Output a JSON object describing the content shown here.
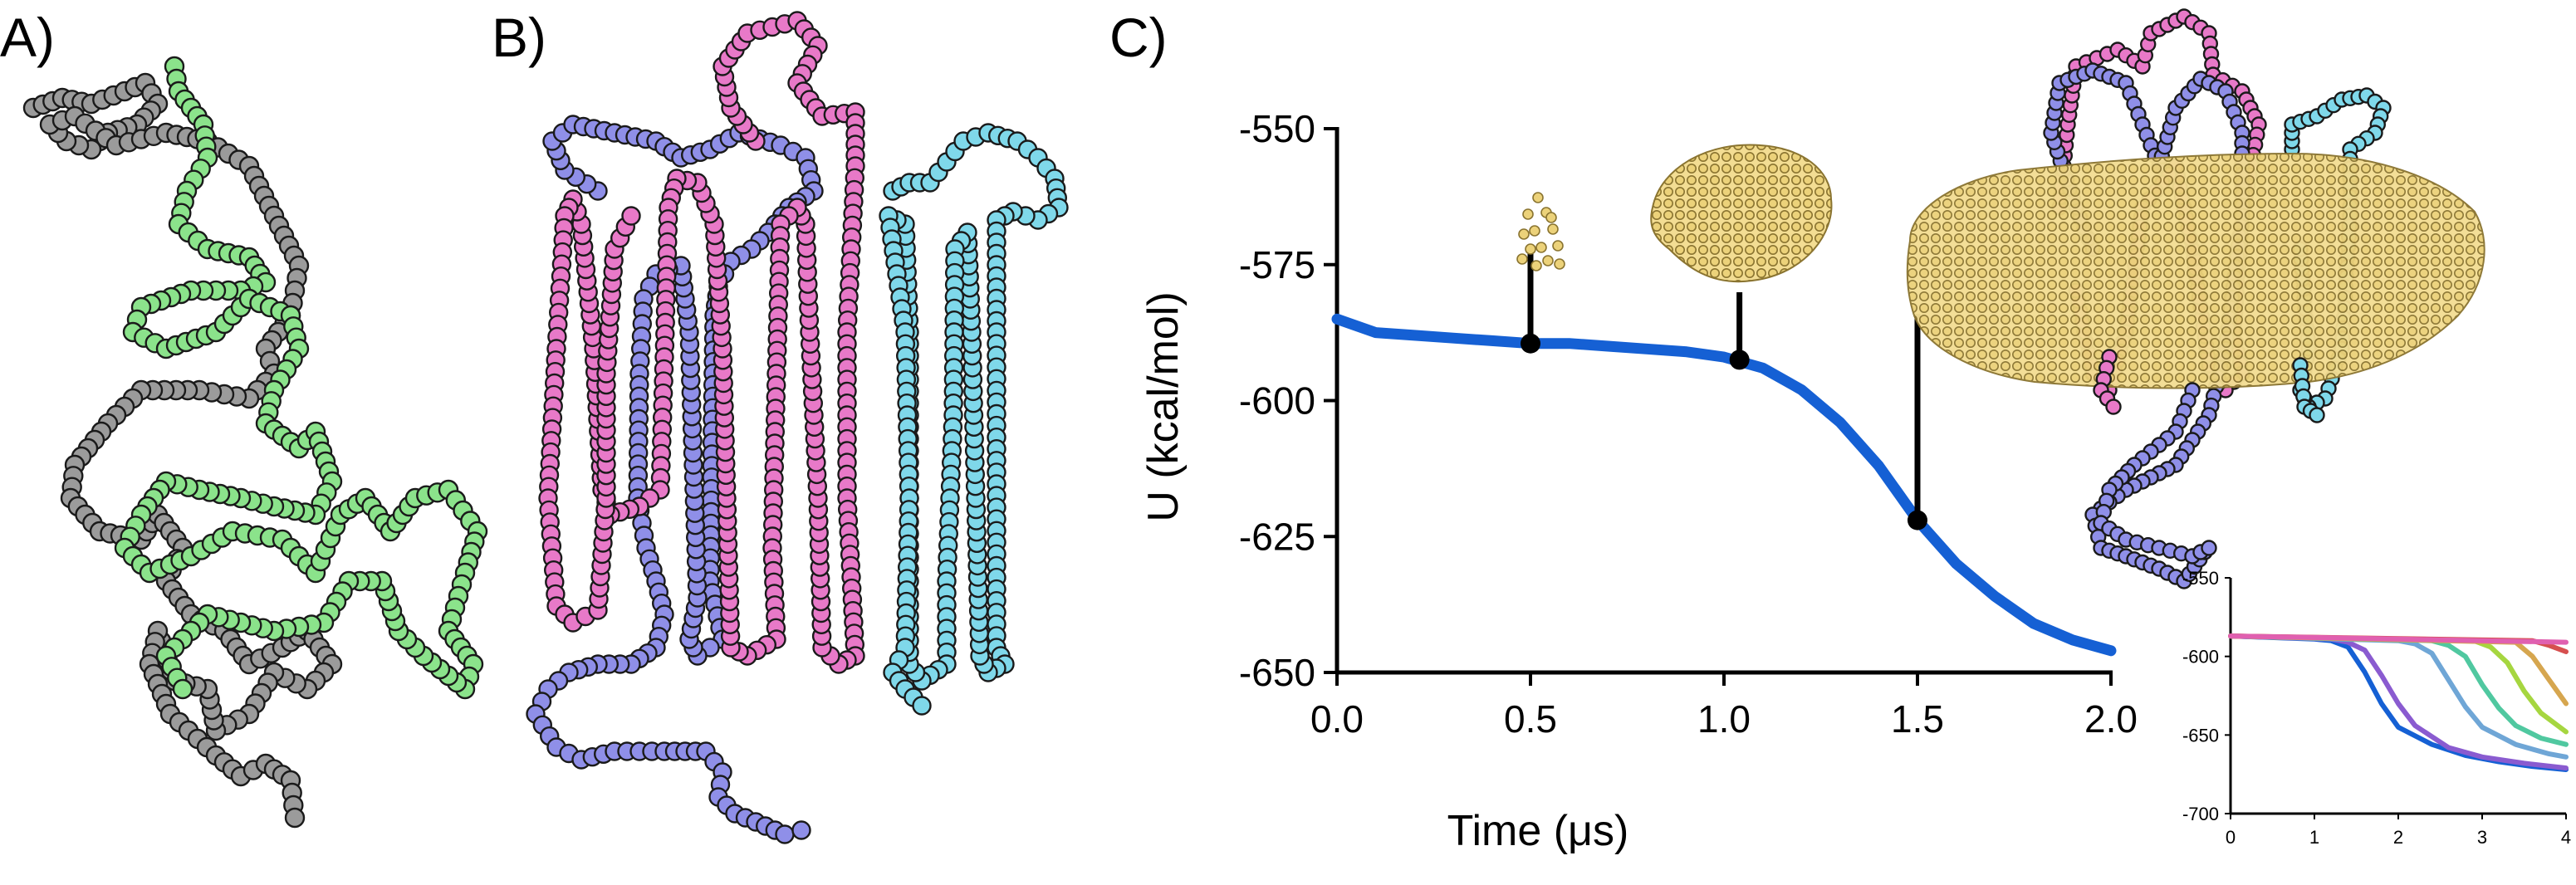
{
  "panels": {
    "a": "A)",
    "b": "B)",
    "c": "C)"
  },
  "colors": {
    "grey_chain": "#9b9b9b",
    "green_chain": "#8be38b",
    "violet_chain": "#8f8fe8",
    "pink_chain": "#e879c8",
    "cyan_chain": "#7fd8ea",
    "lipid": "#ecd27a",
    "main_line": "#1560d4"
  },
  "chart_data": [
    {
      "type": "line",
      "xlabel": "Time (μs)",
      "ylabel": "U (kcal/mol)",
      "xlim": [
        0.0,
        2.0
      ],
      "ylim": [
        -650,
        -550
      ],
      "xticks": [
        "0.0",
        "0.5",
        "1.0",
        "1.5",
        "2.0"
      ],
      "yticks": [
        "-550",
        "-575",
        "-600",
        "-625",
        "-650"
      ],
      "series": [
        {
          "color": "#1560d4",
          "x": [
            0.0,
            0.1,
            0.2,
            0.3,
            0.4,
            0.5,
            0.6,
            0.7,
            0.8,
            0.9,
            1.0,
            1.1,
            1.2,
            1.3,
            1.4,
            1.5,
            1.6,
            1.7,
            1.8,
            1.9,
            2.0
          ],
          "y": [
            -585,
            -587.5,
            -588,
            -588.5,
            -589,
            -589.5,
            -589.5,
            -590,
            -590.5,
            -591,
            -592,
            -594,
            -598,
            -604,
            -612,
            -622,
            -630,
            -636,
            -641,
            -644,
            -646
          ]
        }
      ],
      "markers": [
        {
          "x": 0.5,
          "y": -589.5
        },
        {
          "x": 1.04,
          "y": -592.5
        },
        {
          "x": 1.5,
          "y": -622
        }
      ]
    },
    {
      "type": "line",
      "xlim": [
        0,
        4
      ],
      "ylim": [
        -700,
        -550
      ],
      "xticks": [
        "0",
        "1",
        "2",
        "3",
        "4"
      ],
      "yticks": [
        "-550",
        "-600",
        "-650",
        "-700"
      ],
      "series": [
        {
          "color": "#1560d4",
          "x": [
            0,
            1.0,
            1.2,
            1.4,
            1.6,
            1.8,
            2.0,
            2.4,
            2.8,
            3.2,
            3.6,
            4.0
          ],
          "y": [
            -587,
            -589,
            -590,
            -594,
            -610,
            -630,
            -645,
            -656,
            -663,
            -667,
            -670,
            -672
          ]
        },
        {
          "color": "#8a5bd0",
          "x": [
            0,
            1.2,
            1.4,
            1.6,
            1.8,
            2.0,
            2.2,
            2.6,
            3.0,
            3.5,
            4.0
          ],
          "y": [
            -587,
            -589,
            -591,
            -596,
            -612,
            -630,
            -644,
            -658,
            -664,
            -668,
            -671
          ]
        },
        {
          "color": "#6fa6d6",
          "x": [
            0,
            2.0,
            2.2,
            2.4,
            2.6,
            2.8,
            3.0,
            3.4,
            3.8,
            4.0
          ],
          "y": [
            -587,
            -590,
            -592,
            -598,
            -615,
            -632,
            -645,
            -656,
            -662,
            -664
          ]
        },
        {
          "color": "#50c8a0",
          "x": [
            0,
            2.4,
            2.6,
            2.8,
            3.0,
            3.2,
            3.4,
            3.7,
            4.0
          ],
          "y": [
            -587,
            -590,
            -593,
            -600,
            -618,
            -633,
            -644,
            -652,
            -656
          ]
        },
        {
          "color": "#a6d640",
          "x": [
            0,
            2.9,
            3.1,
            3.3,
            3.5,
            3.7,
            4.0
          ],
          "y": [
            -587,
            -590,
            -594,
            -604,
            -622,
            -636,
            -648
          ]
        },
        {
          "color": "#d6a64f",
          "x": [
            0,
            3.4,
            3.6,
            3.8,
            4.0
          ],
          "y": [
            -587,
            -591,
            -600,
            -615,
            -630
          ]
        },
        {
          "color": "#d64f4f",
          "x": [
            0,
            3.6,
            3.8,
            4.0
          ],
          "y": [
            -587,
            -590,
            -593,
            -597
          ]
        },
        {
          "color": "#e060b0",
          "x": [
            0,
            1.0,
            2.0,
            3.0,
            4.0
          ],
          "y": [
            -587,
            -588,
            -589,
            -590,
            -591
          ]
        }
      ]
    }
  ]
}
